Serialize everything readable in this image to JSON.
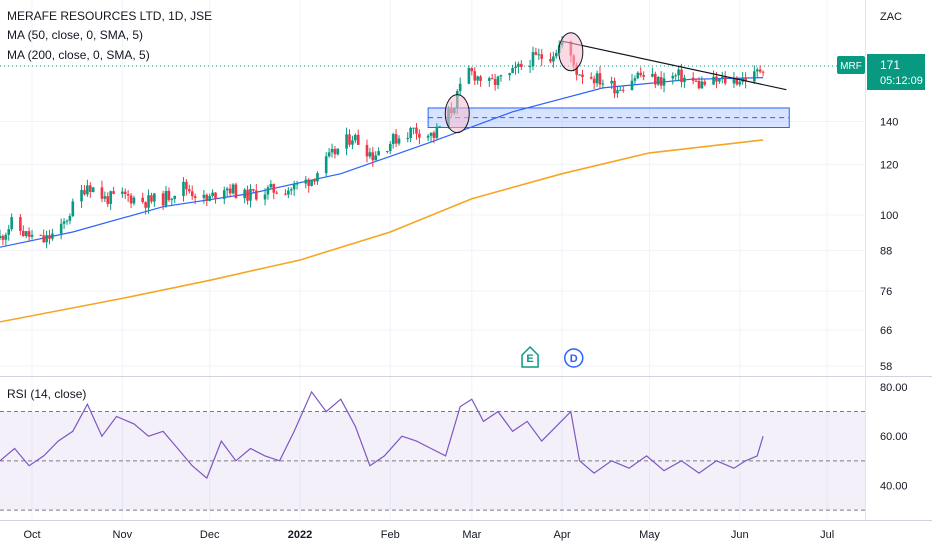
{
  "header": {
    "title": "MERAFE RESOURCES LTD, 1D, JSE",
    "ma50_label": "MA (50, close, 0, SMA, 5)",
    "ma200_label": "MA (200, close, 0, SMA, 5)",
    "rsi_label": "RSI (14, close)",
    "currency": "ZAC"
  },
  "price_tag": {
    "symbol": "MRF",
    "price": "171",
    "countdown": "05:12:09"
  },
  "events": [
    {
      "label": "E",
      "date": "2022-03-21",
      "color": "#089981"
    },
    {
      "label": "D",
      "date": "2022-04-05",
      "color": "#2962ff"
    }
  ],
  "colors": {
    "up": "#089981",
    "down": "#f23645",
    "ma50": "#2962ff",
    "ma200": "#f5a623",
    "rsi": "#7e57c2",
    "zone": "#2962ff",
    "highlight": "#f8bbd0"
  },
  "chart_data": [
    {
      "type": "candlestick",
      "title": "MERAFE RESOURCES LTD, 1D, JSE",
      "scale": "log",
      "y_unit": "ZAC",
      "y_ticks": [
        58,
        66,
        76,
        88,
        100,
        120,
        140,
        171
      ],
      "x_ticks": [
        {
          "label": "Oct",
          "date": "2021-10-01"
        },
        {
          "label": "Nov",
          "date": "2021-11-01"
        },
        {
          "label": "Dec",
          "date": "2021-12-01"
        },
        {
          "label": "2022",
          "date": "2022-01-01"
        },
        {
          "label": "Feb",
          "date": "2022-02-01"
        },
        {
          "label": "Mar",
          "date": "2022-03-01"
        },
        {
          "label": "Apr",
          "date": "2022-04-01"
        },
        {
          "label": "May",
          "date": "2022-05-01"
        },
        {
          "label": "Jun",
          "date": "2022-06-01"
        },
        {
          "label": "Jul",
          "date": "2022-07-01"
        }
      ],
      "x_range": [
        "2021-09-20",
        "2022-07-14"
      ],
      "close_path": [
        [
          "2021-09-20",
          92
        ],
        [
          "2021-09-24",
          97
        ],
        [
          "2021-09-29",
          93
        ],
        [
          "2021-10-05",
          91
        ],
        [
          "2021-10-11",
          95
        ],
        [
          "2021-10-15",
          103
        ],
        [
          "2021-10-20",
          112
        ],
        [
          "2021-10-26",
          106
        ],
        [
          "2021-11-02",
          107
        ],
        [
          "2021-11-09",
          105
        ],
        [
          "2021-11-15",
          106
        ],
        [
          "2021-11-22",
          111
        ],
        [
          "2021-11-30",
          105
        ],
        [
          "2021-12-06",
          111
        ],
        [
          "2021-12-13",
          107
        ],
        [
          "2021-12-20",
          109
        ],
        [
          "2021-12-29",
          110
        ],
        [
          "2022-01-05",
          114
        ],
        [
          "2022-01-12",
          124
        ],
        [
          "2022-01-19",
          133
        ],
        [
          "2022-01-26",
          124
        ],
        [
          "2022-02-02",
          131
        ],
        [
          "2022-02-09",
          136
        ],
        [
          "2022-02-16",
          133
        ],
        [
          "2022-02-22",
          146
        ],
        [
          "2022-02-28",
          168
        ],
        [
          "2022-03-07",
          160
        ],
        [
          "2022-03-14",
          165
        ],
        [
          "2022-03-21",
          175
        ],
        [
          "2022-03-28",
          178
        ],
        [
          "2022-04-01",
          186
        ],
        [
          "2022-04-06",
          168
        ],
        [
          "2022-04-12",
          164
        ],
        [
          "2022-04-20",
          158
        ],
        [
          "2022-04-27",
          166
        ],
        [
          "2022-05-04",
          162
        ],
        [
          "2022-05-11",
          165
        ],
        [
          "2022-05-18",
          160
        ],
        [
          "2022-05-25",
          162
        ],
        [
          "2022-06-01",
          163
        ],
        [
          "2022-06-06",
          165
        ],
        [
          "2022-06-09",
          171
        ]
      ],
      "ma50_path": [
        [
          "2021-09-20",
          89
        ],
        [
          "2021-10-15",
          94
        ],
        [
          "2021-11-15",
          103
        ],
        [
          "2021-12-15",
          108
        ],
        [
          "2022-01-15",
          116
        ],
        [
          "2022-02-15",
          130
        ],
        [
          "2022-03-15",
          145
        ],
        [
          "2022-04-15",
          158
        ],
        [
          "2022-05-15",
          163
        ],
        [
          "2022-06-09",
          164
        ]
      ],
      "ma200_path": [
        [
          "2021-09-20",
          68
        ],
        [
          "2021-11-01",
          74
        ],
        [
          "2021-12-01",
          79
        ],
        [
          "2022-01-01",
          85
        ],
        [
          "2022-02-01",
          94
        ],
        [
          "2022-03-01",
          106
        ],
        [
          "2022-04-01",
          116
        ],
        [
          "2022-05-01",
          125
        ],
        [
          "2022-06-09",
          131
        ]
      ],
      "annotations": {
        "zone": {
          "top": 147,
          "bottom": 137,
          "mid": 142,
          "start": "2022-02-14",
          "end": "2022-06-18"
        },
        "trendline": [
          [
            "2022-04-01",
            187
          ],
          [
            "2022-06-17",
            157
          ]
        ],
        "circles": [
          [
            "2022-02-24",
            144
          ],
          [
            "2022-04-04",
            180
          ]
        ],
        "last_price_line": 171
      }
    },
    {
      "type": "line",
      "title": "RSI (14, close)",
      "y_ticks": [
        40,
        60,
        80
      ],
      "ylim": [
        28,
        82
      ],
      "band": [
        30,
        70
      ],
      "midline": 50,
      "path": [
        [
          "2021-09-20",
          50
        ],
        [
          "2021-09-25",
          55
        ],
        [
          "2021-09-30",
          48
        ],
        [
          "2021-10-05",
          52
        ],
        [
          "2021-10-10",
          58
        ],
        [
          "2021-10-15",
          62
        ],
        [
          "2021-10-20",
          73
        ],
        [
          "2021-10-25",
          60
        ],
        [
          "2021-10-30",
          68
        ],
        [
          "2021-11-05",
          65
        ],
        [
          "2021-11-10",
          60
        ],
        [
          "2021-11-15",
          62
        ],
        [
          "2021-11-20",
          55
        ],
        [
          "2021-11-25",
          48
        ],
        [
          "2021-11-30",
          43
        ],
        [
          "2021-12-05",
          58
        ],
        [
          "2021-12-10",
          50
        ],
        [
          "2021-12-15",
          55
        ],
        [
          "2021-12-20",
          52
        ],
        [
          "2021-12-25",
          50
        ],
        [
          "2021-12-30",
          62
        ],
        [
          "2022-01-05",
          78
        ],
        [
          "2022-01-10",
          70
        ],
        [
          "2022-01-15",
          75
        ],
        [
          "2022-01-20",
          64
        ],
        [
          "2022-01-25",
          48
        ],
        [
          "2022-01-30",
          52
        ],
        [
          "2022-02-05",
          60
        ],
        [
          "2022-02-10",
          58
        ],
        [
          "2022-02-15",
          55
        ],
        [
          "2022-02-20",
          52
        ],
        [
          "2022-02-25",
          72
        ],
        [
          "2022-03-01",
          75
        ],
        [
          "2022-03-05",
          66
        ],
        [
          "2022-03-10",
          70
        ],
        [
          "2022-03-15",
          62
        ],
        [
          "2022-03-20",
          66
        ],
        [
          "2022-03-25",
          58
        ],
        [
          "2022-03-30",
          64
        ],
        [
          "2022-04-04",
          70
        ],
        [
          "2022-04-07",
          50
        ],
        [
          "2022-04-12",
          45
        ],
        [
          "2022-04-18",
          50
        ],
        [
          "2022-04-24",
          47
        ],
        [
          "2022-04-30",
          52
        ],
        [
          "2022-05-06",
          46
        ],
        [
          "2022-05-12",
          50
        ],
        [
          "2022-05-18",
          45
        ],
        [
          "2022-05-24",
          50
        ],
        [
          "2022-05-30",
          47
        ],
        [
          "2022-06-03",
          50
        ],
        [
          "2022-06-07",
          52
        ],
        [
          "2022-06-09",
          60
        ]
      ]
    }
  ]
}
